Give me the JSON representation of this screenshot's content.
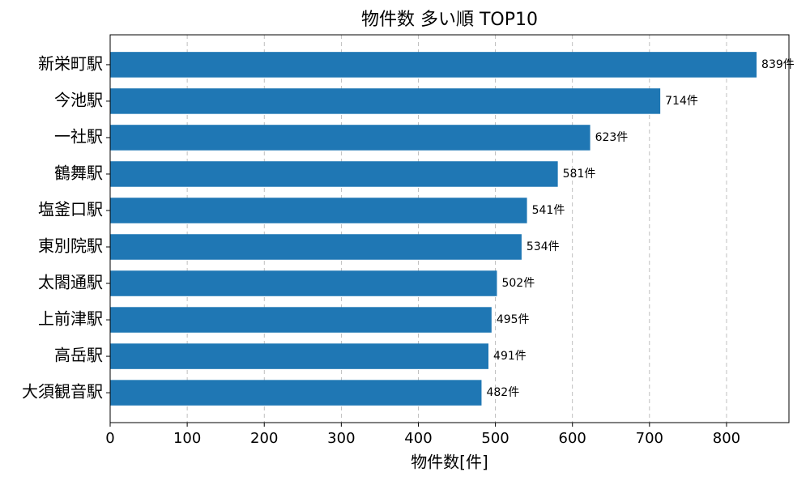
{
  "chart_data": {
    "type": "barh",
    "title": "物件数 多い順 TOP10",
    "xlabel": "物件数[件]",
    "categories": [
      "新栄町駅",
      "今池駅",
      "一社駅",
      "鶴舞駅",
      "塩釜口駅",
      "東別院駅",
      "太閤通駅",
      "上前津駅",
      "高岳駅",
      "大須観音駅"
    ],
    "values": [
      839,
      714,
      623,
      581,
      541,
      534,
      502,
      495,
      491,
      482
    ],
    "value_labels": [
      "839件",
      "714件",
      "623件",
      "581件",
      "541件",
      "534件",
      "502件",
      "495件",
      "491件",
      "482件"
    ],
    "color": "#1f77b4",
    "xlim": [
      0,
      881
    ],
    "xticks": [
      0,
      100,
      200,
      300,
      400,
      500,
      600,
      700,
      800
    ],
    "grid": true
  }
}
